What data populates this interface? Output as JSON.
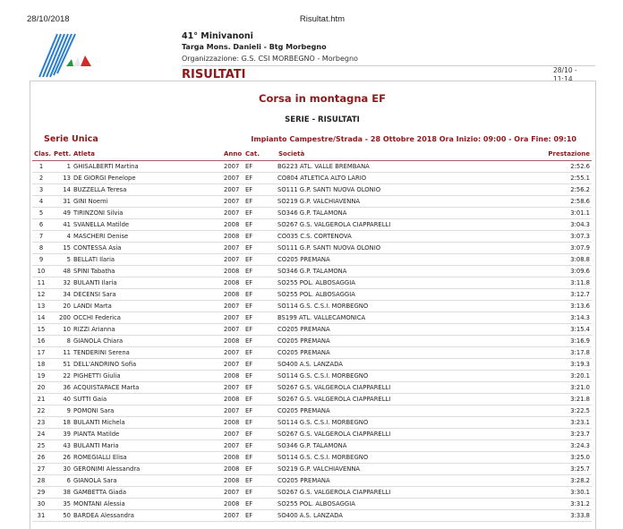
{
  "page_header": {
    "date": "28/10/2018",
    "file": "Risultat.htm"
  },
  "event": {
    "title": "41° Minivanoni",
    "subtitle": "Targa Mons. Danieli - Btg Morbegno",
    "organizer": "Organizzazione: G.S. CSI MORBEGNO - Morbegno",
    "section": "RISULTATI",
    "stamp_date": "28/10 -",
    "stamp_time": "11:14"
  },
  "race": {
    "name": "Corsa in montagna EF",
    "heading": "SERIE - RISULTATI",
    "series": "Serie Unica",
    "info": "Impianto Campestre/Strada - 28 Ottobre 2018 Ora Inizio: 09:00 - Ora Fine: 09:10"
  },
  "columns": {
    "clas": "Clas.",
    "pett": "Pett.",
    "atleta": "Atleta",
    "anno": "Anno",
    "cat": "Cat.",
    "societa": "Società",
    "prestazione": "Prestazione"
  },
  "rows": [
    [
      "1",
      "1",
      "GHISALBERTI Martina",
      "2007",
      "EF",
      "BG223 ATL. VALLE BREMBANA",
      "2:52.6"
    ],
    [
      "2",
      "13",
      "DE GIORGI Penelope",
      "2007",
      "EF",
      "CO804 ATLETICA ALTO LARIO",
      "2:55.1"
    ],
    [
      "3",
      "14",
      "BUZZELLA Teresa",
      "2007",
      "EF",
      "SO111 G.P. SANTI NUOVA OLONIO",
      "2:56.2"
    ],
    [
      "4",
      "31",
      "GINI Noemi",
      "2007",
      "EF",
      "SO219 G.P. VALCHIAVENNA",
      "2:58.6"
    ],
    [
      "5",
      "49",
      "TIRINZONI Silvia",
      "2007",
      "EF",
      "SO346 G.P. TALAMONA",
      "3:01.1"
    ],
    [
      "6",
      "41",
      "SVANELLA Matilde",
      "2008",
      "EF",
      "SO267 G.S. VALGEROLA CIAPPARELLI",
      "3:04.3"
    ],
    [
      "7",
      "4",
      "MASCHERI Denise",
      "2008",
      "EF",
      "CO035 C.S. CORTENOVA",
      "3:07.3"
    ],
    [
      "8",
      "15",
      "CONTESSA Asia",
      "2007",
      "EF",
      "SO111 G.P. SANTI NUOVA OLONIO",
      "3:07.9"
    ],
    [
      "9",
      "5",
      "BELLATI Ilaria",
      "2007",
      "EF",
      "CO205 PREMANA",
      "3:08.8"
    ],
    [
      "10",
      "48",
      "SPINI Tabatha",
      "2008",
      "EF",
      "SO346 G.P. TALAMONA",
      "3:09.6"
    ],
    [
      "11",
      "32",
      "BULANTI Ilaria",
      "2008",
      "EF",
      "SO255 POL. ALBOSAGGIA",
      "3:11.8"
    ],
    [
      "12",
      "34",
      "DECENSI Sara",
      "2008",
      "EF",
      "SO255 POL. ALBOSAGGIA",
      "3:12.7"
    ],
    [
      "13",
      "20",
      "LANDI Marta",
      "2007",
      "EF",
      "SO114 G.S. C.S.I. MORBEGNO",
      "3:13.6"
    ],
    [
      "14",
      "200",
      "OCCHI Federica",
      "2007",
      "EF",
      "BS199 ATL. VALLECAMONICA",
      "3:14.3"
    ],
    [
      "15",
      "10",
      "RIZZI Arianna",
      "2007",
      "EF",
      "CO205 PREMANA",
      "3:15.4"
    ],
    [
      "16",
      "8",
      "GIANOLA Chiara",
      "2008",
      "EF",
      "CO205 PREMANA",
      "3:16.9"
    ],
    [
      "17",
      "11",
      "TENDERINI Serena",
      "2007",
      "EF",
      "CO205 PREMANA",
      "3:17.8"
    ],
    [
      "18",
      "51",
      "DELL'ANDRINO Sofia",
      "2007",
      "EF",
      "SO400 A.S. LANZADA",
      "3:19.3"
    ],
    [
      "19",
      "22",
      "PIGHETTI Giulia",
      "2008",
      "EF",
      "SO114 G.S. C.S.I. MORBEGNO",
      "3:20.1"
    ],
    [
      "20",
      "36",
      "ACQUISTAPACE Marta",
      "2007",
      "EF",
      "SO267 G.S. VALGEROLA CIAPPARELLI",
      "3:21.0"
    ],
    [
      "21",
      "40",
      "SUTTI Gaia",
      "2008",
      "EF",
      "SO267 G.S. VALGEROLA CIAPPARELLI",
      "3:21.8"
    ],
    [
      "22",
      "9",
      "POMONI Sara",
      "2007",
      "EF",
      "CO205 PREMANA",
      "3:22.5"
    ],
    [
      "23",
      "18",
      "BULANTI Michela",
      "2008",
      "EF",
      "SO114 G.S. C.S.I. MORBEGNO",
      "3:23.1"
    ],
    [
      "24",
      "39",
      "PIANTA Matilde",
      "2007",
      "EF",
      "SO267 G.S. VALGEROLA CIAPPARELLI",
      "3:23.7"
    ],
    [
      "25",
      "43",
      "BULANTI Maria",
      "2007",
      "EF",
      "SO346 G.P. TALAMONA",
      "3:24.3"
    ],
    [
      "26",
      "26",
      "ROMEGIALLI Elisa",
      "2008",
      "EF",
      "SO114 G.S. C.S.I. MORBEGNO",
      "3:25.0"
    ],
    [
      "27",
      "30",
      "GERONIMI Alessandra",
      "2008",
      "EF",
      "SO219 G.P. VALCHIAVENNA",
      "3:25.7"
    ],
    [
      "28",
      "6",
      "GIANOLA Sara",
      "2008",
      "EF",
      "CO205 PREMANA",
      "3:28.2"
    ],
    [
      "29",
      "38",
      "GAMBETTA Giada",
      "2007",
      "EF",
      "SO267 G.S. VALGEROLA CIAPPARELLI",
      "3:30.1"
    ],
    [
      "30",
      "35",
      "MONTANI Alessia",
      "2008",
      "EF",
      "SO255 POL. ALBOSAGGIA",
      "3:31.2"
    ],
    [
      "31",
      "50",
      "BARDEA Alessandra",
      "2007",
      "EF",
      "SO400 A.S. LANZADA",
      "3:33.8"
    ]
  ],
  "colors": {
    "accent": "#8b1a1a",
    "logo_blue": "#2a7fd0",
    "flag_green": "#1f9a3a",
    "flag_red": "#d42a2a"
  }
}
